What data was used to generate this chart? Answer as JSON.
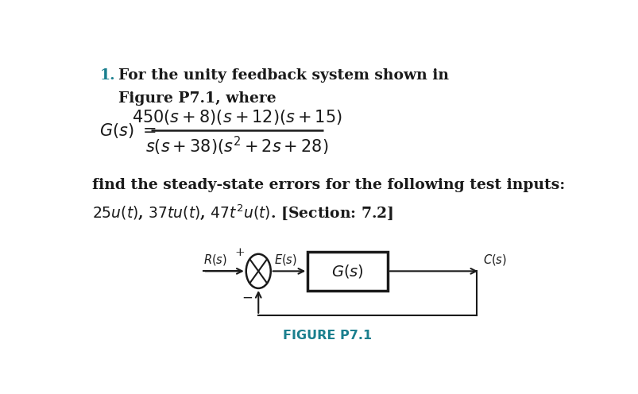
{
  "bg_color": "#ffffff",
  "teal_color": "#1a7f8e",
  "black_color": "#1a1a1a",
  "fig_width": 8.04,
  "fig_height": 4.96,
  "number_text": "1.",
  "intro_line1": "For the unity feedback system shown in",
  "intro_line2": "Figure P7.1, where",
  "body_line1": "find the steady-state errors for the following test inputs:",
  "body_line2": "$25u(t)$, $37tu(t)$, $47t^2u(t)$. [Section: 7.2]",
  "figure_label": "FIGURE P7.1"
}
